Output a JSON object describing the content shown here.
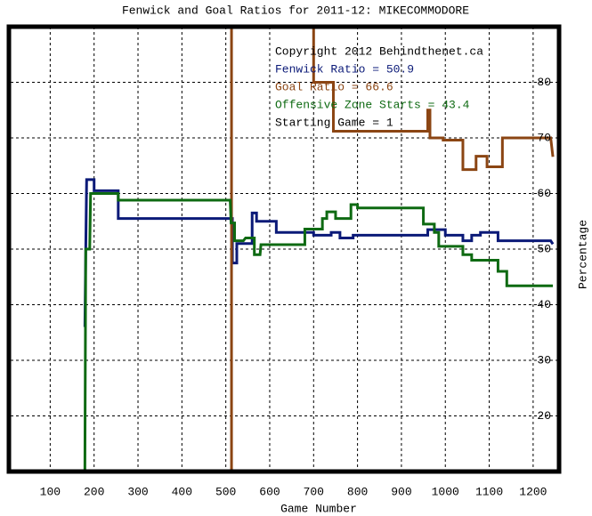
{
  "chart_data": {
    "type": "line",
    "title": "Fenwick and Goal Ratios for 2011-12: MIKECOMMODORE",
    "x_label": "Game Number",
    "y_label": "Percentage",
    "annotations": [
      "Copyright 2012 Behindthenet.ca",
      "Starting Game = 1"
    ],
    "xlim": [
      10,
      1255
    ],
    "ylim": [
      10,
      90
    ],
    "xticks": [
      100,
      200,
      300,
      400,
      500,
      600,
      700,
      800,
      900,
      1000,
      1100,
      1200
    ],
    "yticks": [
      20,
      30,
      40,
      50,
      60,
      70,
      80
    ],
    "grid": true,
    "series": [
      {
        "name": "Fenwick Ratio = 50.9",
        "color": "#0b1a78",
        "x": [
          179,
          181,
          183,
          200,
          200,
          255,
          255,
          515,
          515,
          525,
          525,
          560,
          560,
          570,
          570,
          615,
          615,
          700,
          700,
          740,
          740,
          760,
          760,
          790,
          790,
          960,
          960,
          1000,
          1000,
          1040,
          1040,
          1060,
          1060,
          1080,
          1080,
          1120,
          1120,
          1240,
          1245
        ],
        "values": [
          36,
          50,
          62.5,
          62.5,
          60.5,
          60.5,
          55.5,
          55.5,
          47.5,
          47.5,
          51,
          51,
          56.5,
          56.5,
          55,
          55,
          53,
          53,
          52.5,
          52.5,
          53,
          53,
          52,
          52,
          52.5,
          52.5,
          53.5,
          53.5,
          52.5,
          52.5,
          51.5,
          51.5,
          52.5,
          52.5,
          53,
          53,
          51.5,
          51.5,
          50.9
        ]
      },
      {
        "name": "Goal Ratio = 66.6",
        "color": "#8b4513",
        "x": [
          513,
          513,
          700,
          700,
          745,
          745,
          960,
          960,
          965,
          965,
          995,
          995,
          1040,
          1040,
          1070,
          1070,
          1095,
          1095,
          1130,
          1130,
          1240,
          1245
        ],
        "values": [
          0,
          100,
          100,
          80,
          80,
          71.2,
          71.2,
          75,
          75,
          70,
          70,
          69.6,
          69.6,
          64.3,
          64.3,
          66.7,
          66.7,
          64.8,
          64.8,
          70,
          70,
          66.6
        ]
      },
      {
        "name": "Offensive Zone Starts = 43.4",
        "color": "#0e6a12",
        "x": [
          179,
          181,
          190,
          192,
          255,
          255,
          510,
          512,
          520,
          520,
          540,
          545,
          565,
          565,
          578,
          580,
          680,
          680,
          720,
          720,
          730,
          730,
          750,
          750,
          785,
          785,
          800,
          800,
          950,
          950,
          975,
          975,
          985,
          985,
          1040,
          1040,
          1060,
          1060,
          1120,
          1120,
          1140,
          1140,
          1245
        ],
        "values": [
          10,
          50,
          50,
          60,
          60,
          58.8,
          58.8,
          54.7,
          54.7,
          51.5,
          51.5,
          52,
          52,
          49,
          49,
          50.8,
          50.8,
          53.6,
          53.6,
          55.5,
          55.5,
          56.7,
          56.7,
          55.5,
          55.5,
          58,
          58,
          57.4,
          57.4,
          54.5,
          54.5,
          53,
          53,
          50.5,
          50.5,
          49,
          49,
          48,
          48,
          46,
          46,
          43.4,
          43.4
        ]
      }
    ]
  }
}
